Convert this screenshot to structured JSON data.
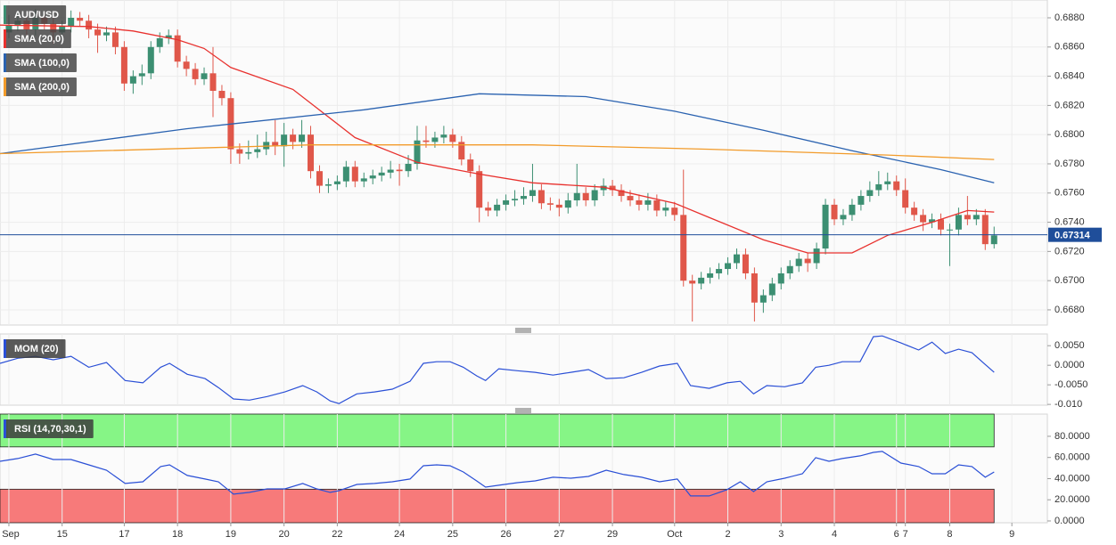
{
  "chart_data": [
    {
      "type": "candlestick",
      "name": "AUD/USD",
      "up_color": "#3c8f72",
      "down_color": "#e0574a",
      "xlim": [
        -1,
        117
      ],
      "xticks": [
        {
          "value": 0,
          "label": "Sep"
        },
        {
          "value": 6,
          "label": "15"
        },
        {
          "value": 13,
          "label": "17"
        },
        {
          "value": 19,
          "label": "18"
        },
        {
          "value": 25,
          "label": "19"
        },
        {
          "value": 31,
          "label": "20"
        },
        {
          "value": 37,
          "label": "22"
        },
        {
          "value": 44,
          "label": "24"
        },
        {
          "value": 50,
          "label": "25"
        },
        {
          "value": 56,
          "label": "26"
        },
        {
          "value": 62,
          "label": "27"
        },
        {
          "value": 68,
          "label": "29"
        },
        {
          "value": 75,
          "label": "Oct"
        },
        {
          "value": 81,
          "label": "2"
        },
        {
          "value": 87,
          "label": "3"
        },
        {
          "value": 93,
          "label": "4"
        },
        {
          "value": 100,
          "label": "6"
        },
        {
          "value": 101,
          "label": "7"
        },
        {
          "value": 106,
          "label": "8"
        },
        {
          "value": 113,
          "label": "9"
        }
      ],
      "ylim": [
        0.66696,
        0.68922
      ],
      "yticks": [
        {
          "value": 0.688,
          "label": "0.6880"
        },
        {
          "value": 0.686,
          "label": "0.6860"
        },
        {
          "value": 0.684,
          "label": "0.6840"
        },
        {
          "value": 0.682,
          "label": "0.6820"
        },
        {
          "value": 0.68,
          "label": "0.6800"
        },
        {
          "value": 0.678,
          "label": "0.6780"
        },
        {
          "value": 0.676,
          "label": "0.6760"
        },
        {
          "value": 0.674,
          "label": "0.6740"
        },
        {
          "value": 0.672,
          "label": "0.6720"
        },
        {
          "value": 0.67,
          "label": "0.6700"
        },
        {
          "value": 0.668,
          "label": "0.6680"
        }
      ],
      "grid": true,
      "last_price": 0.67314,
      "last_price_color": "#1f4e9a",
      "ohlc": [
        [
          0.687,
          0.6882,
          0.6866,
          0.6875
        ],
        [
          0.6875,
          0.6884,
          0.6871,
          0.6878
        ],
        [
          0.6878,
          0.6882,
          0.6868,
          0.6872
        ],
        [
          0.6872,
          0.6886,
          0.6868,
          0.688
        ],
        [
          0.688,
          0.6884,
          0.6872,
          0.6876
        ],
        [
          0.6876,
          0.688,
          0.6862,
          0.687
        ],
        [
          0.687,
          0.6878,
          0.6866,
          0.6874
        ],
        [
          0.6874,
          0.6885,
          0.687,
          0.688
        ],
        [
          0.688,
          0.6884,
          0.6874,
          0.6878
        ],
        [
          0.6878,
          0.6882,
          0.6866,
          0.6872
        ],
        [
          0.6872,
          0.6876,
          0.6856,
          0.6868
        ],
        [
          0.6868,
          0.6874,
          0.6864,
          0.687
        ],
        [
          0.687,
          0.6874,
          0.6855,
          0.686
        ],
        [
          0.686,
          0.6864,
          0.683,
          0.6835
        ],
        [
          0.6835,
          0.6844,
          0.6828,
          0.684
        ],
        [
          0.684,
          0.6848,
          0.6834,
          0.6842
        ],
        [
          0.6842,
          0.6864,
          0.6838,
          0.686
        ],
        [
          0.686,
          0.687,
          0.6856,
          0.6866
        ],
        [
          0.6866,
          0.6872,
          0.6862,
          0.6868
        ],
        [
          0.6868,
          0.6872,
          0.6846,
          0.685
        ],
        [
          0.685,
          0.6854,
          0.684,
          0.6845
        ],
        [
          0.6845,
          0.6849,
          0.6834,
          0.6838
        ],
        [
          0.6838,
          0.6846,
          0.6834,
          0.6842
        ],
        [
          0.6842,
          0.686,
          0.6812,
          0.683
        ],
        [
          0.683,
          0.6834,
          0.682,
          0.6825
        ],
        [
          0.6825,
          0.6829,
          0.678,
          0.679
        ],
        [
          0.679,
          0.6794,
          0.678,
          0.6787
        ],
        [
          0.6787,
          0.6796,
          0.6783,
          0.6788
        ],
        [
          0.6788,
          0.68,
          0.6784,
          0.679
        ],
        [
          0.679,
          0.6802,
          0.6786,
          0.6795
        ],
        [
          0.6795,
          0.681,
          0.6786,
          0.6792
        ],
        [
          0.6792,
          0.6808,
          0.6778,
          0.68
        ],
        [
          0.68,
          0.6804,
          0.679,
          0.6795
        ],
        [
          0.6795,
          0.681,
          0.6791,
          0.68
        ],
        [
          0.68,
          0.6806,
          0.677,
          0.6775
        ],
        [
          0.6775,
          0.6779,
          0.676,
          0.6765
        ],
        [
          0.6765,
          0.677,
          0.676,
          0.6766
        ],
        [
          0.6766,
          0.6772,
          0.6762,
          0.6768
        ],
        [
          0.6768,
          0.6782,
          0.6764,
          0.6778
        ],
        [
          0.6778,
          0.6782,
          0.6764,
          0.6768
        ],
        [
          0.6768,
          0.6774,
          0.6764,
          0.677
        ],
        [
          0.677,
          0.6776,
          0.6766,
          0.6772
        ],
        [
          0.6772,
          0.6778,
          0.6768,
          0.6774
        ],
        [
          0.6774,
          0.6782,
          0.677,
          0.6776
        ],
        [
          0.6776,
          0.678,
          0.6765,
          0.6775
        ],
        [
          0.6775,
          0.6786,
          0.6771,
          0.678
        ],
        [
          0.678,
          0.6806,
          0.6776,
          0.6796
        ],
        [
          0.6796,
          0.6806,
          0.6791,
          0.6795
        ],
        [
          0.6795,
          0.6802,
          0.6791,
          0.6798
        ],
        [
          0.6798,
          0.6806,
          0.6794,
          0.68
        ],
        [
          0.68,
          0.6804,
          0.6791,
          0.6795
        ],
        [
          0.6795,
          0.6799,
          0.6779,
          0.6783
        ],
        [
          0.6783,
          0.6787,
          0.6771,
          0.6775
        ],
        [
          0.6775,
          0.6779,
          0.674,
          0.675
        ],
        [
          0.675,
          0.6754,
          0.6744,
          0.6748
        ],
        [
          0.6748,
          0.6756,
          0.6744,
          0.6752
        ],
        [
          0.6752,
          0.6759,
          0.6748,
          0.6755
        ],
        [
          0.6755,
          0.6762,
          0.6751,
          0.6756
        ],
        [
          0.6756,
          0.6764,
          0.6752,
          0.6758
        ],
        [
          0.6758,
          0.678,
          0.6754,
          0.6762
        ],
        [
          0.6762,
          0.6766,
          0.6749,
          0.6753
        ],
        [
          0.6753,
          0.6757,
          0.6748,
          0.6752
        ],
        [
          0.6752,
          0.6756,
          0.6744,
          0.675
        ],
        [
          0.675,
          0.676,
          0.6746,
          0.6755
        ],
        [
          0.6755,
          0.678,
          0.6751,
          0.676
        ],
        [
          0.676,
          0.6764,
          0.6751,
          0.6755
        ],
        [
          0.6755,
          0.6766,
          0.6751,
          0.6762
        ],
        [
          0.6762,
          0.677,
          0.6758,
          0.6765
        ],
        [
          0.6765,
          0.6769,
          0.6758,
          0.6762
        ],
        [
          0.6762,
          0.6766,
          0.6754,
          0.6758
        ],
        [
          0.6758,
          0.6762,
          0.6751,
          0.6755
        ],
        [
          0.6755,
          0.6759,
          0.6748,
          0.6752
        ],
        [
          0.6752,
          0.676,
          0.6748,
          0.6755
        ],
        [
          0.6755,
          0.6759,
          0.6744,
          0.6748
        ],
        [
          0.6748,
          0.6754,
          0.6744,
          0.675
        ],
        [
          0.675,
          0.6754,
          0.6741,
          0.6745
        ],
        [
          0.6745,
          0.6776,
          0.6696,
          0.67
        ],
        [
          0.67,
          0.6704,
          0.6672,
          0.6698
        ],
        [
          0.6698,
          0.6706,
          0.6694,
          0.6702
        ],
        [
          0.6702,
          0.6709,
          0.6698,
          0.6705
        ],
        [
          0.6705,
          0.6712,
          0.6701,
          0.6708
        ],
        [
          0.6708,
          0.6716,
          0.6704,
          0.6712
        ],
        [
          0.6712,
          0.6722,
          0.6708,
          0.6718
        ],
        [
          0.6718,
          0.6722,
          0.6701,
          0.6705
        ],
        [
          0.6705,
          0.6709,
          0.6672,
          0.6685
        ],
        [
          0.6685,
          0.6694,
          0.6678,
          0.669
        ],
        [
          0.669,
          0.6702,
          0.6686,
          0.6698
        ],
        [
          0.6698,
          0.6709,
          0.6694,
          0.6705
        ],
        [
          0.6705,
          0.6714,
          0.6701,
          0.671
        ],
        [
          0.671,
          0.6719,
          0.6706,
          0.6715
        ],
        [
          0.6715,
          0.6719,
          0.6706,
          0.6712
        ],
        [
          0.6712,
          0.6726,
          0.6708,
          0.6722
        ],
        [
          0.6722,
          0.6756,
          0.6718,
          0.6752
        ],
        [
          0.6752,
          0.6756,
          0.6738,
          0.6742
        ],
        [
          0.6742,
          0.6749,
          0.6738,
          0.6745
        ],
        [
          0.6745,
          0.6756,
          0.6741,
          0.6752
        ],
        [
          0.6752,
          0.6762,
          0.6748,
          0.6758
        ],
        [
          0.6758,
          0.6768,
          0.6754,
          0.6762
        ],
        [
          0.6762,
          0.6775,
          0.6758,
          0.6766
        ],
        [
          0.6766,
          0.6774,
          0.6762,
          0.6768
        ],
        [
          0.6768,
          0.6772,
          0.6758,
          0.6762
        ],
        [
          0.6762,
          0.677,
          0.6746,
          0.675
        ],
        [
          0.675,
          0.6754,
          0.6741,
          0.6745
        ],
        [
          0.6745,
          0.6749,
          0.6734,
          0.674
        ],
        [
          0.674,
          0.6746,
          0.6736,
          0.6742
        ],
        [
          0.6742,
          0.6746,
          0.6731,
          0.6735
        ],
        [
          0.6735,
          0.6739,
          0.671,
          0.6735
        ],
        [
          0.6735,
          0.675,
          0.6731,
          0.6745
        ],
        [
          0.6745,
          0.6758,
          0.6738,
          0.6742
        ],
        [
          0.6742,
          0.6749,
          0.6738,
          0.6745
        ],
        [
          0.6745,
          0.6749,
          0.6721,
          0.6725
        ],
        [
          0.6725,
          0.6737,
          0.6722,
          0.6731
        ]
      ],
      "series": [
        {
          "name": "SMA (20,0)",
          "color": "#e8312e",
          "x": [
            -1,
            9,
            14,
            19,
            22,
            25,
            32,
            39,
            46,
            53,
            59,
            67,
            75,
            79,
            85,
            90,
            95,
            99,
            104,
            108,
            111
          ],
          "values": [
            0.6875,
            0.6874,
            0.6871,
            0.6865,
            0.6859,
            0.6846,
            0.6831,
            0.6798,
            0.6781,
            0.6773,
            0.6767,
            0.6764,
            0.6753,
            0.6743,
            0.6728,
            0.6719,
            0.6719,
            0.6731,
            0.674,
            0.6748,
            0.6747
          ]
        },
        {
          "name": "SMA (100,0)",
          "color": "#2a62b0",
          "x": [
            -1,
            20,
            40,
            53,
            65,
            75,
            85,
            95,
            105,
            111
          ],
          "values": [
            0.6787,
            0.6804,
            0.6817,
            0.6828,
            0.6826,
            0.6816,
            0.6803,
            0.6789,
            0.6776,
            0.6767
          ]
        },
        {
          "name": "SMA (200,0)",
          "color": "#f29b2a",
          "x": [
            -1,
            34,
            59,
            79,
            99,
            111
          ],
          "values": [
            0.6787,
            0.6793,
            0.6793,
            0.679,
            0.6786,
            0.6783
          ]
        }
      ]
    },
    {
      "type": "line",
      "name": "MOM (20)",
      "color": "#2a4fd6",
      "xlim": [
        -1,
        117
      ],
      "ylim": [
        -0.0102,
        0.008
      ],
      "yticks": [
        {
          "value": 0.005,
          "label": "0.0050"
        },
        {
          "value": 0,
          "label": "0.0000"
        },
        {
          "value": -0.005,
          "label": "-0.0050"
        },
        {
          "value": -0.01,
          "label": "-0.010"
        }
      ],
      "x": [
        -1,
        1,
        3,
        5,
        7,
        9,
        11,
        13.1,
        15.1,
        17.1,
        18.1,
        20.1,
        22.1,
        23.6,
        25.3,
        27.1,
        29.1,
        31.1,
        33.1,
        34.7,
        36.2,
        37.2,
        39.2,
        41.2,
        43.2,
        45.2,
        46.7,
        48.2,
        49.7,
        51.2,
        52.7,
        53.7,
        55.2,
        57.3,
        59.3,
        61.3,
        63.3,
        65.3,
        67.3,
        69.3,
        71.3,
        73.3,
        75.3,
        76.8,
        78.9,
        80.9,
        82.4,
        83.9,
        85.4,
        87.4,
        89.4,
        90.9,
        92.4,
        93.9,
        95.9,
        97.4,
        98.4,
        100.5,
        102.5,
        104,
        105.5,
        107,
        108.5,
        110,
        111
      ],
      "values": [
        0.0005,
        0.0018,
        0.0023,
        0.0014,
        0.0023,
        -0.0005,
        0.0007,
        -0.0039,
        -0.0045,
        -0.0005,
        0.0005,
        -0.0023,
        -0.0034,
        -0.0057,
        -0.0086,
        -0.0089,
        -0.008,
        -0.0068,
        -0.0052,
        -0.0068,
        -0.0091,
        -0.0098,
        -0.0073,
        -0.0068,
        -0.0061,
        -0.0041,
        0.0005,
        0.0009,
        0.0009,
        -0.0005,
        -0.0027,
        -0.0039,
        -0.0009,
        -0.0014,
        -0.0018,
        -0.0025,
        -0.0018,
        -0.0011,
        -0.0034,
        -0.0032,
        -0.0018,
        -0.0002,
        0.0005,
        -0.0052,
        -0.0059,
        -0.0045,
        -0.0041,
        -0.0073,
        -0.0052,
        -0.0055,
        -0.0045,
        -0.0005,
        0,
        0.0009,
        0.0009,
        0.0073,
        0.0075,
        0.0057,
        0.0039,
        0.0059,
        0.003,
        0.0041,
        0.0032,
        0.0002,
        -0.0018
      ]
    },
    {
      "type": "line",
      "name": "RSI (14,70,30,1)",
      "color": "#2a4fd6",
      "xlim": [
        -1,
        117
      ],
      "ylim": [
        -1.7,
        101
      ],
      "yticks": [
        {
          "value": 80,
          "label": "80.0000"
        },
        {
          "value": 60,
          "label": "60.0000"
        },
        {
          "value": 40,
          "label": "40.0000"
        },
        {
          "value": 20,
          "label": "20.0000"
        },
        {
          "value": 0,
          "label": "0.0000"
        }
      ],
      "bands": [
        {
          "from": 70,
          "to": 101,
          "color": "#86f586"
        },
        {
          "from": -1.7,
          "to": 30,
          "color": "#f77a7a"
        }
      ],
      "x": [
        -1,
        1,
        3,
        5,
        7,
        9,
        11,
        13.1,
        15.1,
        17.1,
        18.1,
        20.1,
        22.1,
        23.6,
        25.3,
        27.1,
        29.1,
        31.1,
        33.1,
        34.7,
        36.2,
        37.2,
        39.2,
        41.2,
        43.2,
        45.2,
        46.7,
        48.2,
        49.7,
        51.2,
        52.7,
        53.7,
        55.2,
        57.3,
        59.3,
        61.3,
        63.3,
        65.3,
        67.3,
        69.3,
        71.3,
        73.3,
        75.3,
        76.8,
        78.9,
        80.9,
        82.4,
        83.9,
        85.4,
        87.4,
        89.4,
        90.9,
        92.4,
        93.9,
        95.9,
        97.4,
        98.4,
        100.5,
        102.5,
        104,
        105.5,
        107,
        108.5,
        110,
        111
      ],
      "values": [
        56.4,
        59,
        63.2,
        58.1,
        58.1,
        53,
        48,
        35.4,
        37,
        51.4,
        53,
        43,
        39.6,
        37,
        25.3,
        27,
        30.3,
        30.3,
        35.4,
        30.3,
        27,
        28.6,
        34.5,
        35.4,
        37,
        39.6,
        52.2,
        53,
        52.2,
        46.3,
        37.9,
        32,
        33.7,
        36.2,
        37.9,
        41.3,
        40.4,
        42.1,
        48,
        43.8,
        41.3,
        37,
        39.6,
        23.6,
        23.6,
        29.5,
        37,
        27.8,
        37,
        40.4,
        44.6,
        59.8,
        56.4,
        59,
        61.5,
        64.8,
        65.7,
        54.7,
        51.4,
        44.6,
        44.6,
        53,
        51.4,
        41.3,
        46.3
      ]
    }
  ]
}
